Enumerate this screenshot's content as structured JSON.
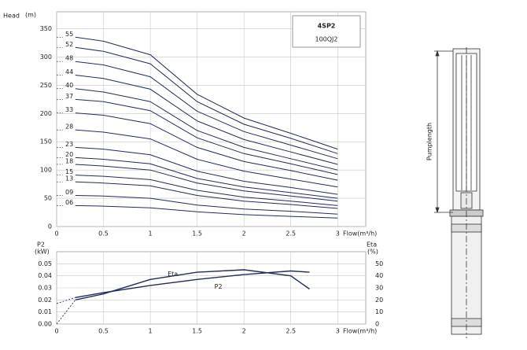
{
  "chart_data": [
    {
      "type": "line",
      "title": "4SP2",
      "subtitle": "100QJ2",
      "y_label": "Head",
      "y_unit": "(m)",
      "x_label": "Flow(m³/h)",
      "x": [
        0.2,
        0.5,
        1,
        1.5,
        2,
        2.5,
        3
      ],
      "xlim": [
        0,
        3.3
      ],
      "xticks": [
        0,
        0.5,
        1,
        1.5,
        2,
        2.5,
        3
      ],
      "ylim": [
        0,
        380
      ],
      "yticks": [
        0,
        50,
        100,
        150,
        200,
        250,
        300,
        350
      ],
      "grid": true,
      "series": [
        {
          "name": "55",
          "color": "#1f2d5c",
          "values": [
            335,
            328,
            304,
            234,
            192,
            165,
            137
          ]
        },
        {
          "name": "52",
          "color": "#1f2d5c",
          "values": [
            317,
            310,
            288,
            221,
            181,
            156,
            129
          ]
        },
        {
          "name": "48",
          "color": "#1f2d5c",
          "values": [
            292,
            286,
            265,
            204,
            168,
            144,
            120
          ]
        },
        {
          "name": "44",
          "color": "#1f2d5c",
          "values": [
            268,
            262,
            243,
            187,
            154,
            132,
            110
          ]
        },
        {
          "name": "40",
          "color": "#1f2d5c",
          "values": [
            244,
            238,
            221,
            170,
            140,
            120,
            100
          ]
        },
        {
          "name": "37",
          "color": "#1f2d5c",
          "values": [
            225,
            221,
            205,
            157,
            129,
            111,
            92
          ]
        },
        {
          "name": "33",
          "color": "#1f2d5c",
          "values": [
            201,
            197,
            182,
            140,
            115,
            99,
            82
          ]
        },
        {
          "name": "28",
          "color": "#1f2d5c",
          "values": [
            171,
            167,
            155,
            119,
            98,
            84,
            70
          ]
        },
        {
          "name": "23",
          "color": "#1f2d5c",
          "values": [
            140,
            137,
            127,
            98,
            80,
            69,
            57
          ]
        },
        {
          "name": "20",
          "color": "#1f2d5c",
          "values": [
            122,
            119,
            111,
            85,
            70,
            60,
            50
          ]
        },
        {
          "name": "18",
          "color": "#1f2d5c",
          "values": [
            110,
            107,
            100,
            77,
            63,
            54,
            45
          ]
        },
        {
          "name": "15",
          "color": "#1f2d5c",
          "values": [
            91,
            89,
            83,
            64,
            52,
            45,
            37
          ]
        },
        {
          "name": "13",
          "color": "#1f2d5c",
          "values": [
            79,
            77,
            72,
            55,
            45,
            39,
            32
          ]
        },
        {
          "name": "09",
          "color": "#1f2d5c",
          "values": [
            55,
            54,
            50,
            38,
            31,
            27,
            22
          ]
        },
        {
          "name": "06",
          "color": "#1f2d5c",
          "values": [
            37,
            36,
            33,
            26,
            21,
            18,
            15
          ]
        }
      ]
    },
    {
      "type": "line",
      "y_label": "P2",
      "y_unit": "(kW)",
      "y2_label": "Eta",
      "y2_unit": "(%)",
      "x_label": "Flow(m³/h)",
      "x": [
        0,
        0.2,
        0.5,
        1,
        1.5,
        2,
        2.5,
        2.7
      ],
      "xlim": [
        0,
        3.3
      ],
      "xticks": [
        0,
        0.5,
        1,
        1.5,
        2,
        2.5,
        3
      ],
      "ylim": [
        0,
        0.06
      ],
      "yticks": [
        {
          "value": 0,
          "label": "0.00"
        },
        0.01,
        0.02,
        0.03,
        0.04,
        0.05
      ],
      "y2lim": [
        0,
        60
      ],
      "y2ticks": [
        0,
        10,
        20,
        30,
        40,
        50
      ],
      "grid": true,
      "series": [
        {
          "name": "Eta",
          "axis": "y2",
          "color": "#1f2d5c",
          "style": "dashed-start",
          "values": [
            0,
            20,
            25,
            37,
            43,
            45,
            40,
            29
          ]
        },
        {
          "name": "P2",
          "color": "#1f2d5c",
          "style": "dashed-start",
          "values": [
            0.017,
            0.022,
            0.026,
            0.032,
            0.037,
            0.041,
            0.044,
            0.043
          ]
        }
      ]
    }
  ],
  "diagram": {
    "label": "Pumplength"
  }
}
